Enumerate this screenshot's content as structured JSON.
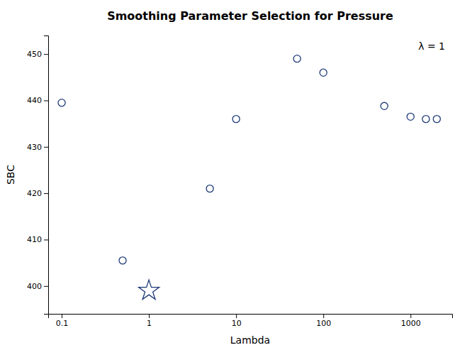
{
  "chart_data": {
    "type": "scatter",
    "title": "Smoothing Parameter Selection for Pressure",
    "xlabel": "Lambda",
    "ylabel": "SBC",
    "annotation": "λ = 1",
    "log": "x",
    "grid": false,
    "xlim": [
      0.07,
      3000
    ],
    "ylim": [
      394,
      454
    ],
    "xticks": [
      0.1,
      1,
      10,
      100,
      1000
    ],
    "yticks": [
      400,
      410,
      420,
      430,
      440,
      450
    ],
    "series": [
      {
        "marker": "circle",
        "color": "#1e3a78",
        "x": [
          0.1,
          0.5,
          5,
          10,
          50,
          100,
          500,
          1000,
          1500,
          2000
        ],
        "values": [
          439.5,
          405.5,
          421.0,
          436.0,
          449.0,
          446.0,
          438.8,
          436.5,
          436.0,
          436.0
        ]
      },
      {
        "marker": "star",
        "color": "#1e3a78",
        "x": [
          1
        ],
        "values": [
          399.0
        ]
      }
    ]
  }
}
